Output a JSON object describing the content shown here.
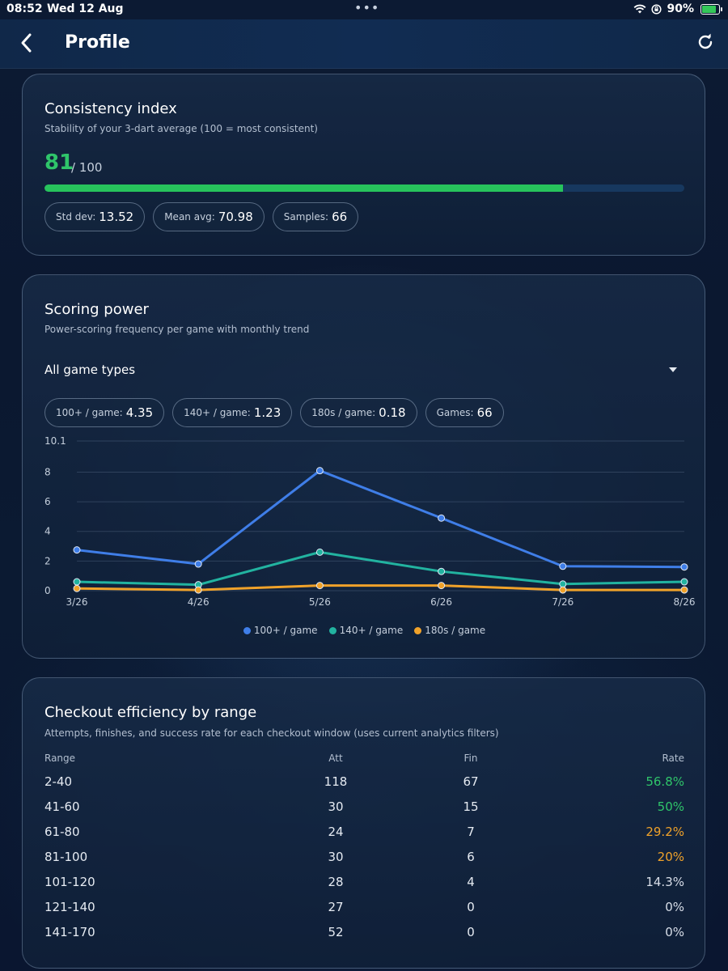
{
  "status_bar": {
    "time": "08:52",
    "date": "Wed 12 Aug",
    "dots": "•••",
    "battery": "90%",
    "battery_level": 0.9
  },
  "header": {
    "title": "Profile"
  },
  "consistency": {
    "title": "Consistency index",
    "subtitle": "Stability of your 3-dart average (100 = most consistent)",
    "score": "81",
    "score_max": "/ 100",
    "progress_percent": 81,
    "chips": [
      {
        "label": "Std dev:",
        "value": "13.52"
      },
      {
        "label": "Mean avg:",
        "value": "70.98"
      },
      {
        "label": "Samples:",
        "value": "66"
      }
    ]
  },
  "scoring": {
    "title": "Scoring power",
    "subtitle": "Power-scoring frequency per game with monthly trend",
    "filter_value": "All game types",
    "chips": [
      {
        "label": "100+ / game:",
        "value": "4.35"
      },
      {
        "label": "140+ / game:",
        "value": "1.23"
      },
      {
        "label": "180s / game:",
        "value": "0.18"
      },
      {
        "label": "Games:",
        "value": "66"
      }
    ]
  },
  "chart_data": {
    "type": "line",
    "x": [
      "3/26",
      "4/26",
      "5/26",
      "6/26",
      "7/26",
      "8/26"
    ],
    "y_ticks": [
      "0",
      "2",
      "4",
      "6",
      "8",
      "10.1"
    ],
    "ylim": [
      0,
      10.1
    ],
    "grid": true,
    "legend_position": "bottom",
    "series": [
      {
        "name": "100+ / game",
        "color": "#3f7ee8",
        "values": [
          2.75,
          1.8,
          8.1,
          4.9,
          1.65,
          1.6
        ]
      },
      {
        "name": "140+ / game",
        "color": "#22b3a0",
        "values": [
          0.6,
          0.4,
          2.6,
          1.3,
          0.45,
          0.6
        ]
      },
      {
        "name": "180s / game",
        "color": "#f0a22a",
        "values": [
          0.15,
          0.05,
          0.35,
          0.35,
          0.05,
          0.05
        ]
      }
    ]
  },
  "checkout": {
    "title": "Checkout efficiency by range",
    "subtitle": "Attempts, finishes, and success rate for each checkout window (uses current analytics filters)",
    "columns": {
      "range": "Range",
      "att": "Att",
      "fin": "Fin",
      "rate": "Rate"
    },
    "rows": [
      {
        "range": "2-40",
        "att": "118",
        "fin": "67",
        "rate": "56.8%",
        "rate_color": "#2fc56a"
      },
      {
        "range": "41-60",
        "att": "30",
        "fin": "15",
        "rate": "50%",
        "rate_color": "#2fc56a"
      },
      {
        "range": "61-80",
        "att": "24",
        "fin": "7",
        "rate": "29.2%",
        "rate_color": "#f0a22a"
      },
      {
        "range": "81-100",
        "att": "30",
        "fin": "6",
        "rate": "20%",
        "rate_color": "#f0a22a"
      },
      {
        "range": "101-120",
        "att": "28",
        "fin": "4",
        "rate": "14.3%",
        "rate_color": "#d8dee8"
      },
      {
        "range": "121-140",
        "att": "27",
        "fin": "0",
        "rate": "0%",
        "rate_color": "#d8dee8"
      },
      {
        "range": "141-170",
        "att": "52",
        "fin": "0",
        "rate": "0%",
        "rate_color": "#d8dee8"
      }
    ]
  }
}
